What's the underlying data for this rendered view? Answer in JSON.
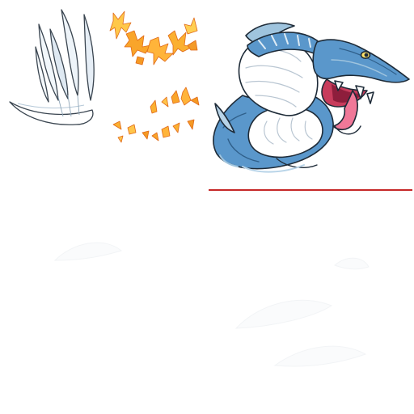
{
  "sprites": [
    {
      "icon": "white-claw-slash-icon",
      "palette": [
        "#ffffff",
        "#c8dae8",
        "#5a6570"
      ]
    },
    {
      "icon": "fire-sparks-icon",
      "palette": [
        "#f7a21c",
        "#ffd23f",
        "#e8641b"
      ]
    },
    {
      "icon": "blue-sea-serpent-icon",
      "palette": [
        "#4f8ec6",
        "#9ec9e8",
        "#ffffff",
        "#e8587c",
        "#1c2a3a"
      ]
    },
    {
      "icon": "red-divider-line-icon",
      "palette": [
        "#c62828"
      ]
    },
    {
      "icon": "faint-white-wisps-icon",
      "palette": [
        "#ffffff",
        "#f4f6f8"
      ]
    }
  ]
}
